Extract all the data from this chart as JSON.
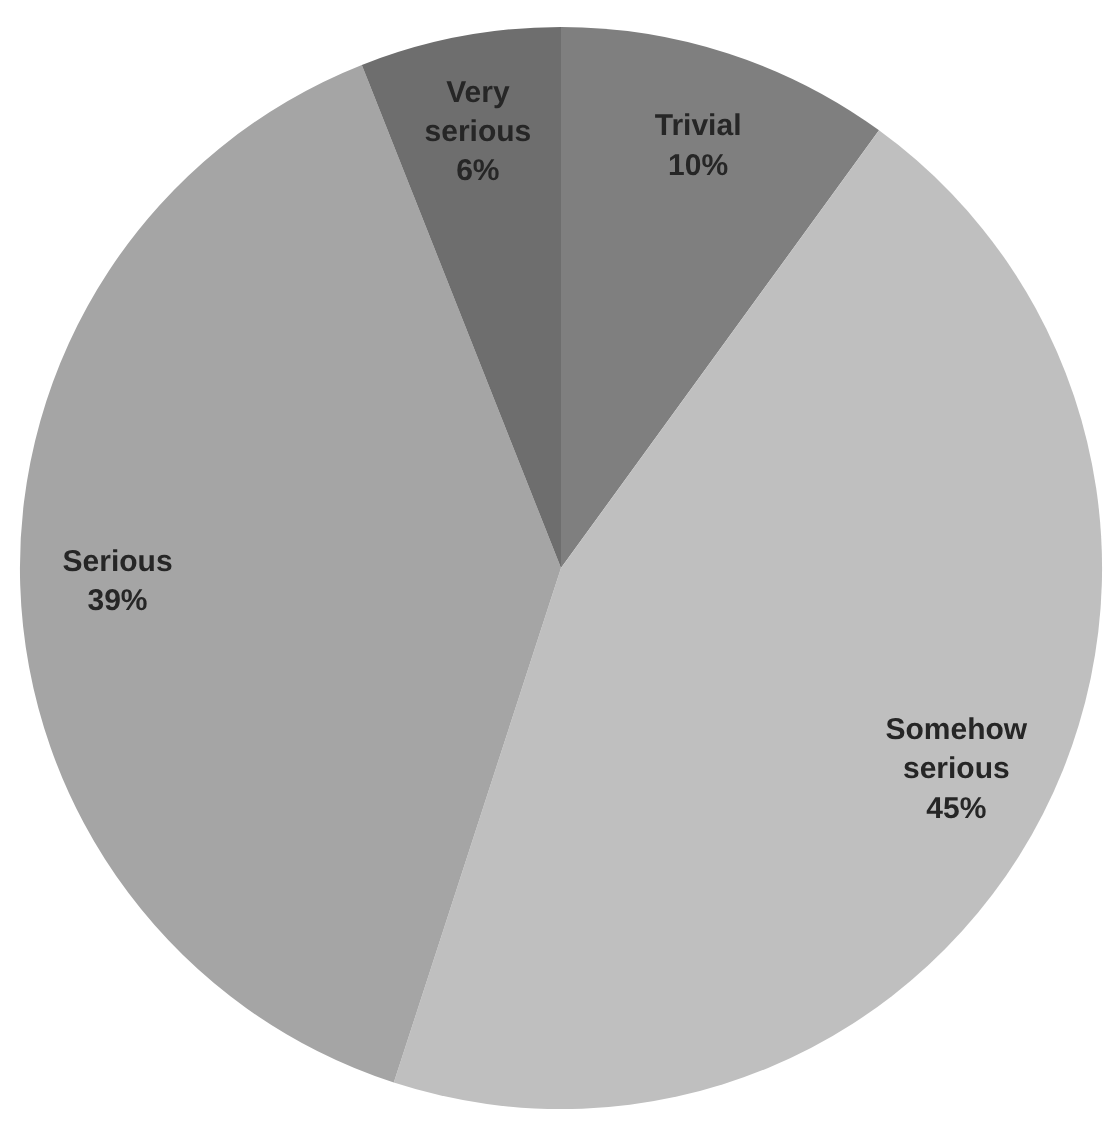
{
  "chart_data": {
    "type": "pie",
    "categories": [
      "Trivial",
      "Somehow serious",
      "Serious",
      "Very serious"
    ],
    "values": [
      10,
      45,
      39,
      6
    ],
    "colors": [
      "#7f7f7f",
      "#bfbfbf",
      "#a5a5a5",
      "#6e6e6e"
    ],
    "value_labels": [
      "10%",
      "45%",
      "39%",
      "6%"
    ]
  }
}
